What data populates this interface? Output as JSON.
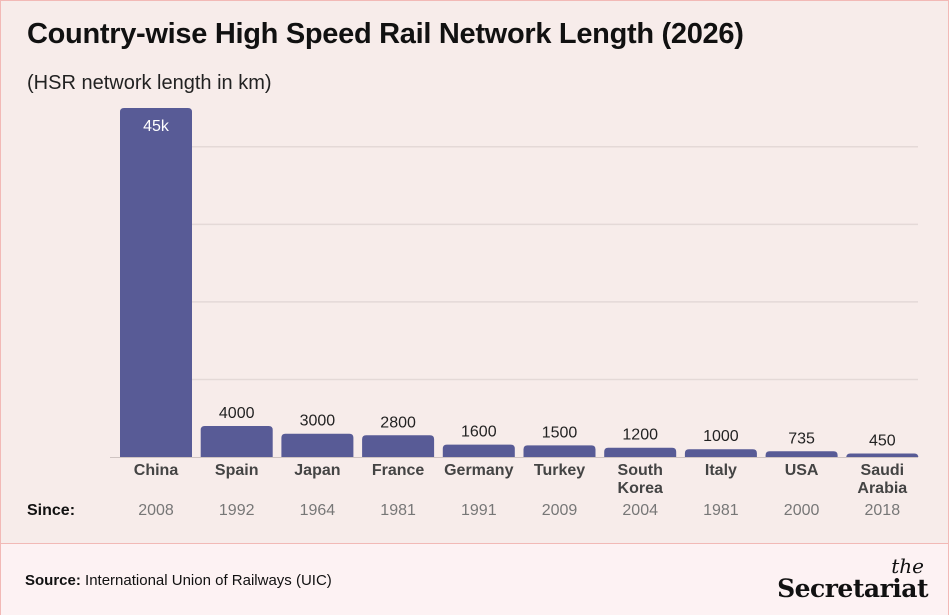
{
  "title": "Country-wise High Speed Rail Network Length (2026)",
  "subtitle": "(HSR network length in km)",
  "since_label": "Since:",
  "source_label": "Source:",
  "source_text": "International Union of Railways (UIC)",
  "logo": {
    "the": "the",
    "name": "Secretariat"
  },
  "colors": {
    "bar": "#585b96",
    "background": "#f7ecea",
    "grid": "#e4d9d7"
  },
  "chart_data": {
    "type": "bar",
    "title": "Country-wise High Speed Rail Network Length (2026)",
    "ylabel": "HSR network length in km",
    "ylim": [
      0,
      45000
    ],
    "grid": true,
    "gridlines": [
      10000,
      20000,
      30000,
      40000
    ],
    "categories": [
      [
        "China"
      ],
      [
        "Spain"
      ],
      [
        "Japan"
      ],
      [
        "France"
      ],
      [
        "Germany"
      ],
      [
        "Turkey"
      ],
      [
        "South",
        "Korea"
      ],
      [
        "Italy"
      ],
      [
        "USA"
      ],
      [
        "Saudi",
        "Arabia"
      ]
    ],
    "values": [
      45000,
      4000,
      3000,
      2800,
      1600,
      1500,
      1200,
      1000,
      735,
      450
    ],
    "value_labels": [
      "45k",
      "4000",
      "3000",
      "2800",
      "1600",
      "1500",
      "1200",
      "1000",
      "735",
      "450"
    ],
    "since": [
      "2008",
      "1992",
      "1964",
      "1981",
      "1991",
      "2009",
      "2004",
      "1981",
      "2000",
      "2018"
    ]
  }
}
